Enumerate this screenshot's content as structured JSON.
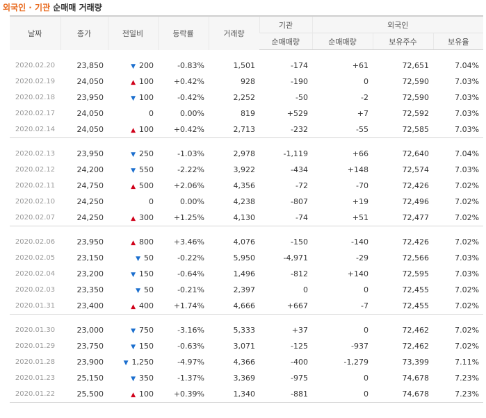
{
  "title": {
    "part1": "외국인 · 기관",
    "part2": " 순매매 거래량"
  },
  "headers": {
    "date": "날짜",
    "close": "종가",
    "change": "전일비",
    "rate": "등락률",
    "volume": "거래량",
    "inst": "기관",
    "foreign": "외국인",
    "inst_net": "순매매량",
    "for_net": "순매매량",
    "holdings": "보유주수",
    "ratio": "보유율"
  },
  "colors": {
    "up": "#d0021b",
    "down": "#1c6fce",
    "title_accent": "#e86a1e"
  },
  "rows": [
    {
      "date": "2020.02.20",
      "close": "23,850",
      "dir": "down",
      "change": "200",
      "rate": "-0.83%",
      "volume": "1,501",
      "inst": "-174",
      "foreign": "+61",
      "holdings": "72,651",
      "ratio": "7.04%"
    },
    {
      "date": "2020.02.19",
      "close": "24,050",
      "dir": "up",
      "change": "100",
      "rate": "+0.42%",
      "volume": "928",
      "inst": "-190",
      "foreign": "0",
      "holdings": "72,590",
      "ratio": "7.03%"
    },
    {
      "date": "2020.02.18",
      "close": "23,950",
      "dir": "down",
      "change": "100",
      "rate": "-0.42%",
      "volume": "2,252",
      "inst": "-50",
      "foreign": "-2",
      "holdings": "72,590",
      "ratio": "7.03%"
    },
    {
      "date": "2020.02.17",
      "close": "24,050",
      "dir": "none",
      "change": "0",
      "rate": "0.00%",
      "volume": "819",
      "inst": "+529",
      "foreign": "+7",
      "holdings": "72,592",
      "ratio": "7.03%"
    },
    {
      "date": "2020.02.14",
      "close": "24,050",
      "dir": "up",
      "change": "100",
      "rate": "+0.42%",
      "volume": "2,713",
      "inst": "-232",
      "foreign": "-55",
      "holdings": "72,585",
      "ratio": "7.03%"
    },
    {
      "date": "2020.02.13",
      "close": "23,950",
      "dir": "down",
      "change": "250",
      "rate": "-1.03%",
      "volume": "2,978",
      "inst": "-1,119",
      "foreign": "+66",
      "holdings": "72,640",
      "ratio": "7.04%"
    },
    {
      "date": "2020.02.12",
      "close": "24,200",
      "dir": "down",
      "change": "550",
      "rate": "-2.22%",
      "volume": "3,922",
      "inst": "-434",
      "foreign": "+148",
      "holdings": "72,574",
      "ratio": "7.03%"
    },
    {
      "date": "2020.02.11",
      "close": "24,750",
      "dir": "up",
      "change": "500",
      "rate": "+2.06%",
      "volume": "4,356",
      "inst": "-72",
      "foreign": "-70",
      "holdings": "72,426",
      "ratio": "7.02%"
    },
    {
      "date": "2020.02.10",
      "close": "24,250",
      "dir": "none",
      "change": "0",
      "rate": "0.00%",
      "volume": "4,238",
      "inst": "-807",
      "foreign": "+19",
      "holdings": "72,496",
      "ratio": "7.02%"
    },
    {
      "date": "2020.02.07",
      "close": "24,250",
      "dir": "up",
      "change": "300",
      "rate": "+1.25%",
      "volume": "4,130",
      "inst": "-74",
      "foreign": "+51",
      "holdings": "72,477",
      "ratio": "7.02%"
    },
    {
      "date": "2020.02.06",
      "close": "23,950",
      "dir": "up",
      "change": "800",
      "rate": "+3.46%",
      "volume": "4,076",
      "inst": "-150",
      "foreign": "-140",
      "holdings": "72,426",
      "ratio": "7.02%"
    },
    {
      "date": "2020.02.05",
      "close": "23,150",
      "dir": "down",
      "change": "50",
      "rate": "-0.22%",
      "volume": "5,950",
      "inst": "-4,971",
      "foreign": "-29",
      "holdings": "72,566",
      "ratio": "7.03%"
    },
    {
      "date": "2020.02.04",
      "close": "23,200",
      "dir": "down",
      "change": "150",
      "rate": "-0.64%",
      "volume": "1,496",
      "inst": "-812",
      "foreign": "+140",
      "holdings": "72,595",
      "ratio": "7.03%"
    },
    {
      "date": "2020.02.03",
      "close": "23,350",
      "dir": "down",
      "change": "50",
      "rate": "-0.21%",
      "volume": "2,397",
      "inst": "0",
      "foreign": "0",
      "holdings": "72,455",
      "ratio": "7.02%"
    },
    {
      "date": "2020.01.31",
      "close": "23,400",
      "dir": "up",
      "change": "400",
      "rate": "+1.74%",
      "volume": "4,666",
      "inst": "+667",
      "foreign": "-7",
      "holdings": "72,455",
      "ratio": "7.02%"
    },
    {
      "date": "2020.01.30",
      "close": "23,000",
      "dir": "down",
      "change": "750",
      "rate": "-3.16%",
      "volume": "5,333",
      "inst": "+37",
      "foreign": "0",
      "holdings": "72,462",
      "ratio": "7.02%"
    },
    {
      "date": "2020.01.29",
      "close": "23,750",
      "dir": "down",
      "change": "150",
      "rate": "-0.63%",
      "volume": "3,071",
      "inst": "-125",
      "foreign": "-937",
      "holdings": "72,462",
      "ratio": "7.02%"
    },
    {
      "date": "2020.01.28",
      "close": "23,900",
      "dir": "down",
      "change": "1,250",
      "rate": "-4.97%",
      "volume": "4,366",
      "inst": "-400",
      "foreign": "-1,279",
      "holdings": "73,399",
      "ratio": "7.11%"
    },
    {
      "date": "2020.01.23",
      "close": "25,150",
      "dir": "down",
      "change": "350",
      "rate": "-1.37%",
      "volume": "3,369",
      "inst": "-975",
      "foreign": "0",
      "holdings": "74,678",
      "ratio": "7.23%"
    },
    {
      "date": "2020.01.22",
      "close": "25,500",
      "dir": "up",
      "change": "100",
      "rate": "+0.39%",
      "volume": "1,340",
      "inst": "-881",
      "foreign": "0",
      "holdings": "74,678",
      "ratio": "7.23%"
    }
  ]
}
